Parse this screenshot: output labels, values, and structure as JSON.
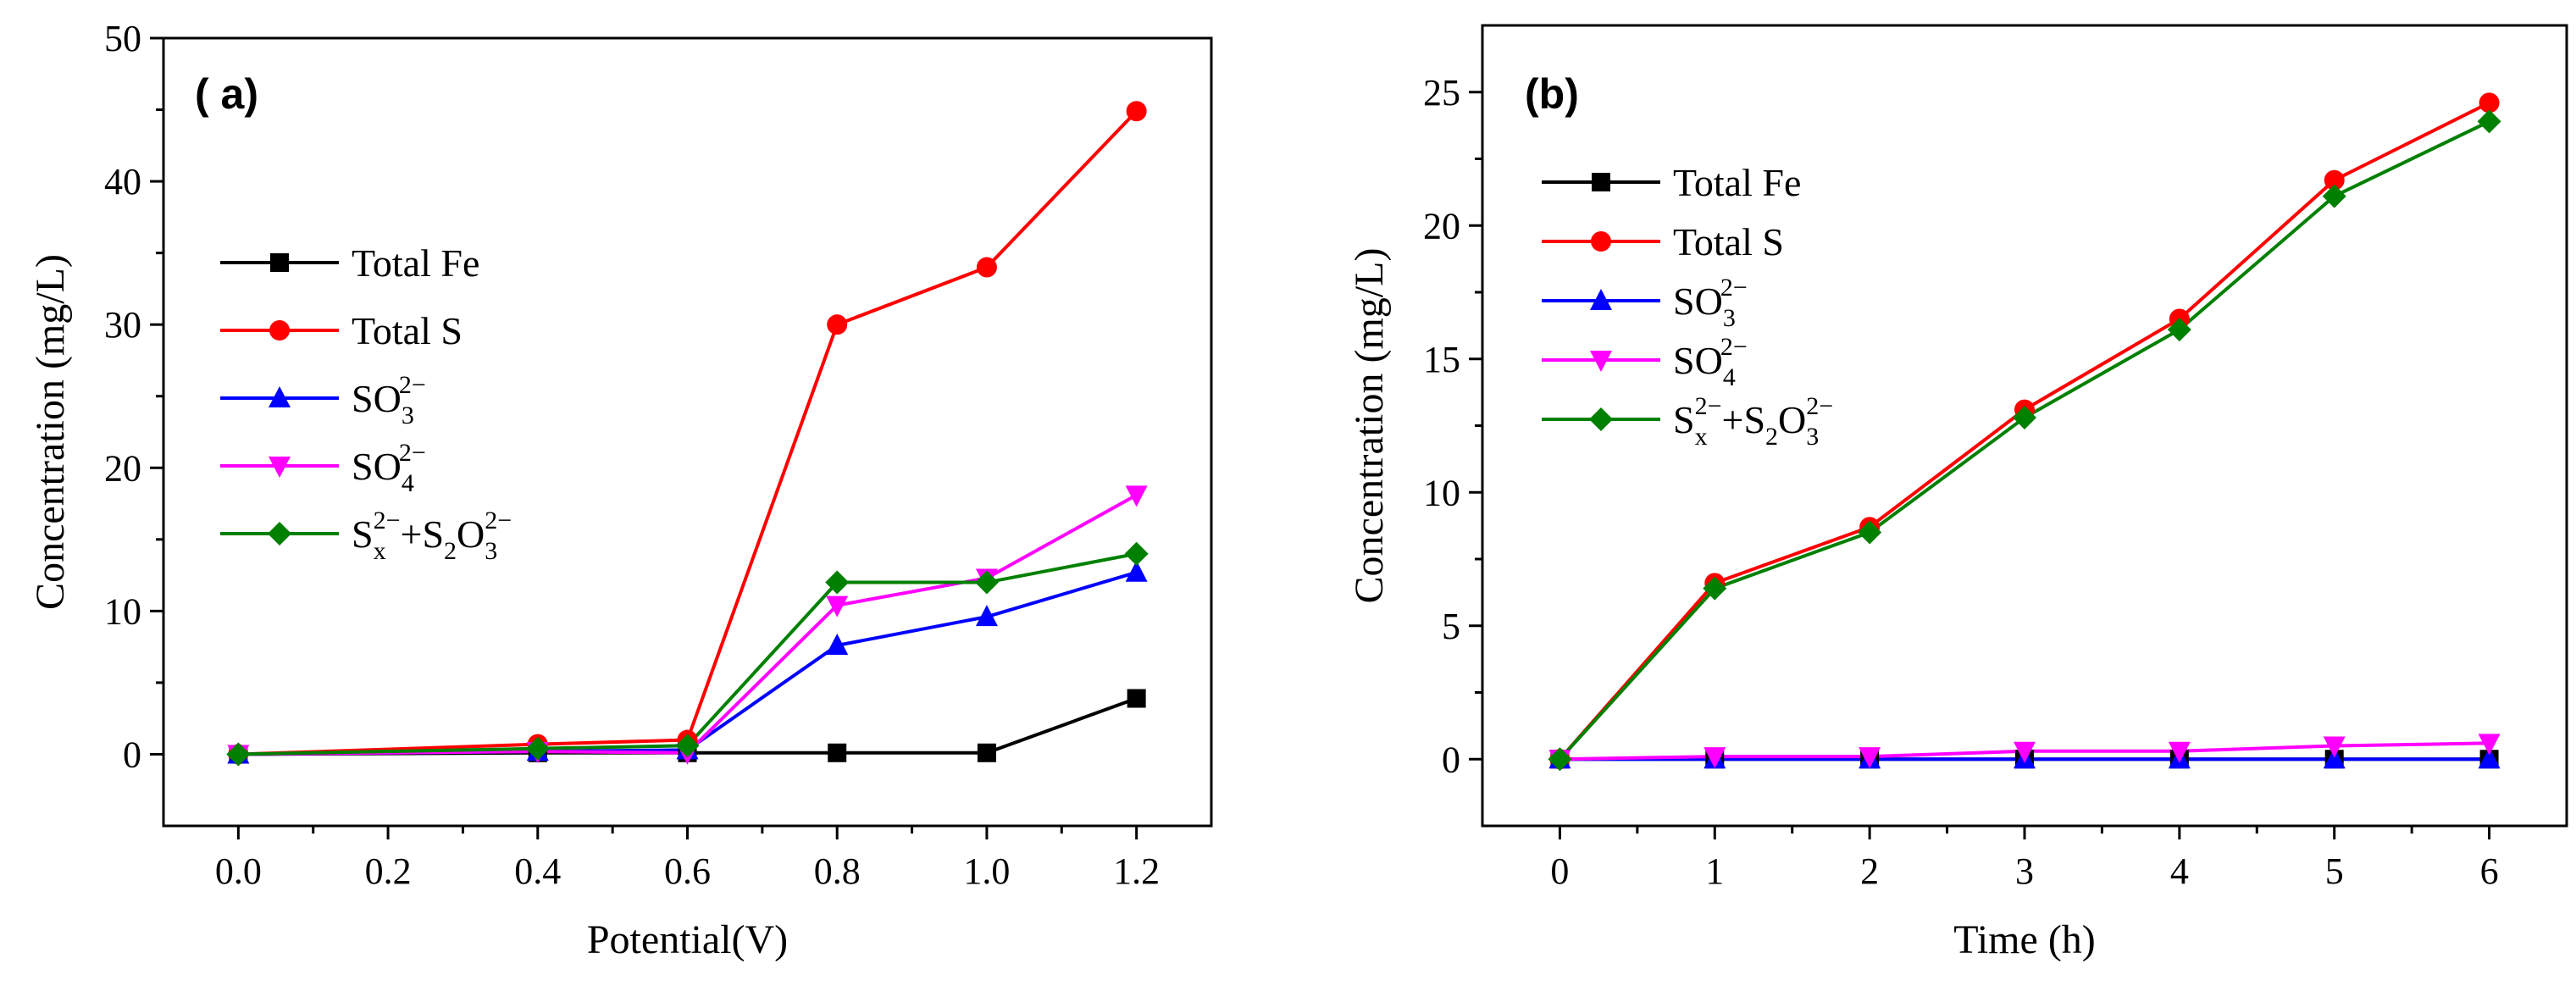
{
  "chart_data": [
    {
      "panel": "(a)",
      "panel_label": "( a)",
      "type": "line",
      "xlabel": "Potential(V)",
      "ylabel": "Concentration (mg/L)",
      "xlim": [
        -0.1,
        1.3
      ],
      "ylim": [
        -5,
        50
      ],
      "xticks": [
        0.0,
        0.2,
        0.4,
        0.6,
        0.8,
        1.0,
        1.2
      ],
      "xtick_labels": [
        "0.0",
        "0.2",
        "0.4",
        "0.6",
        "0.8",
        "1.0",
        "1.2"
      ],
      "yticks": [
        0,
        10,
        20,
        30,
        40,
        50
      ],
      "ytick_labels": [
        "0",
        "10",
        "20",
        "30",
        "40",
        "50"
      ],
      "legend_position": "center-left",
      "x": [
        0.0,
        0.4,
        0.6,
        0.8,
        1.0,
        1.2
      ],
      "series": [
        {
          "name": "Total Fe",
          "color": "#000000",
          "marker": "square",
          "values": [
            0,
            0.1,
            0.1,
            0.1,
            0.1,
            3.9
          ]
        },
        {
          "name": "Total S",
          "color": "#ff0000",
          "marker": "circle",
          "values": [
            0,
            0.7,
            1.0,
            30.0,
            34.0,
            44.9
          ]
        },
        {
          "name": "SO32-",
          "color": "#0000ff",
          "marker": "triangle-up",
          "values": [
            0,
            0.2,
            0.3,
            7.6,
            9.6,
            12.7
          ]
        },
        {
          "name": "SO42-",
          "color": "#ff00ff",
          "marker": "triangle-down",
          "values": [
            0,
            0.2,
            0.1,
            10.4,
            12.3,
            18.1
          ]
        },
        {
          "name": "Sx2- + S2O32-",
          "color": "#008000",
          "marker": "diamond",
          "values": [
            0,
            0.4,
            0.6,
            12.0,
            12.0,
            14.0
          ]
        }
      ]
    },
    {
      "panel": "(b)",
      "panel_label": "(b)",
      "type": "line",
      "xlabel": "Time (h)",
      "ylabel": "Concentration (mg/L)",
      "xlim": [
        -0.5,
        6.5
      ],
      "ylim": [
        -2.5,
        27.5
      ],
      "xticks": [
        0,
        1,
        2,
        3,
        4,
        5,
        6
      ],
      "xtick_labels": [
        "0",
        "1",
        "2",
        "3",
        "4",
        "5",
        "6"
      ],
      "yticks": [
        0,
        5,
        10,
        15,
        20,
        25
      ],
      "ytick_labels": [
        "0",
        "5",
        "10",
        "15",
        "20",
        "25"
      ],
      "legend_position": "top-left",
      "x": [
        0,
        1,
        2,
        3,
        4,
        5,
        6
      ],
      "series": [
        {
          "name": "Total Fe",
          "color": "#000000",
          "marker": "square",
          "values": [
            0,
            0,
            0,
            0,
            0,
            0,
            0
          ]
        },
        {
          "name": "Total S",
          "color": "#ff0000",
          "marker": "circle",
          "values": [
            0,
            6.6,
            8.7,
            13.1,
            16.5,
            21.7,
            24.6
          ]
        },
        {
          "name": "SO32-",
          "color": "#0000ff",
          "marker": "triangle-up",
          "values": [
            0,
            0,
            0,
            0,
            0,
            0,
            0
          ]
        },
        {
          "name": "SO42-",
          "color": "#ff00ff",
          "marker": "triangle-down",
          "values": [
            0,
            0.1,
            0.1,
            0.3,
            0.3,
            0.5,
            0.6
          ]
        },
        {
          "name": "Sx2- + S2O32-",
          "color": "#008000",
          "marker": "diamond",
          "values": [
            0,
            6.4,
            8.5,
            12.8,
            16.1,
            21.1,
            23.9
          ]
        }
      ]
    }
  ],
  "legend_labels": {
    "fe": "Total Fe",
    "s": "Total S",
    "so3_base": "SO",
    "so3_sub": "3",
    "so3_sup": "2−",
    "so4_base": "SO",
    "so4_sub": "4",
    "so4_sup": "2−",
    "mix_s": "S",
    "mix_x": "x",
    "mix_sup1": "2−",
    "mix_plus": "+S",
    "mix_2": "2",
    "mix_o": "O",
    "mix_3": "3",
    "mix_sup2": "2−"
  }
}
